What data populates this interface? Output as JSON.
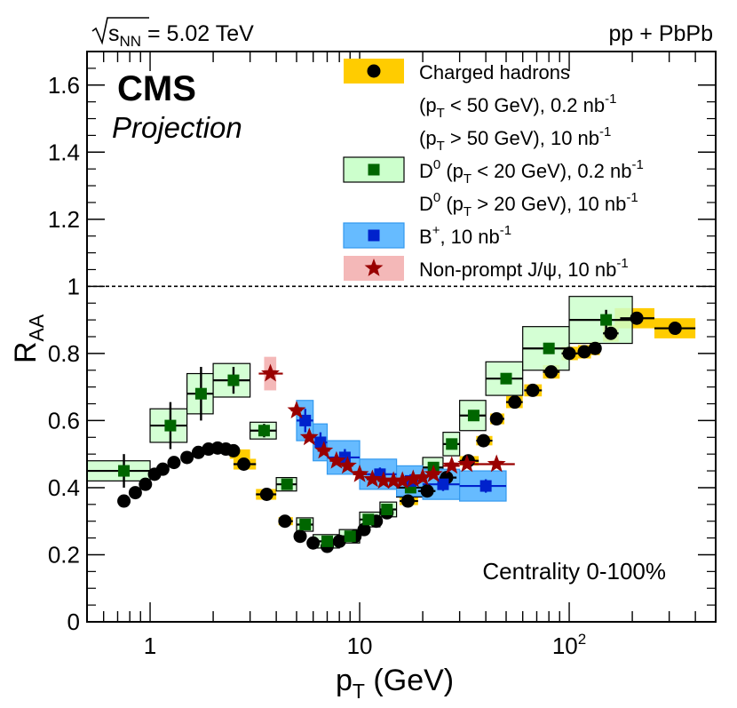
{
  "header": {
    "energy_prefix": "s",
    "energy_sub": "NN",
    "energy_value": " = 5.02 TeV",
    "collision": "pp + PbPb"
  },
  "badge": {
    "experiment": "CMS",
    "status": "Projection"
  },
  "centrality": "Centrality 0-100%",
  "chart_data": {
    "type": "scatter",
    "xscale": "log",
    "xlim": [
      0.5,
      500
    ],
    "ylim": [
      0,
      1.7
    ],
    "xlabel": {
      "main": "p",
      "sub": "T",
      "unit": " (GeV)"
    },
    "ylabel": {
      "main": "R",
      "sub": "AA"
    },
    "reference_line": 1.0,
    "x_ticks": [
      {
        "value": 1,
        "base": "1",
        "exp": ""
      },
      {
        "value": 10,
        "base": "10",
        "exp": ""
      },
      {
        "value": 100,
        "base": "10",
        "exp": "2"
      }
    ],
    "y_ticks": [
      {
        "value": 0,
        "label": "0"
      },
      {
        "value": 0.2,
        "label": "0.2"
      },
      {
        "value": 0.4,
        "label": "0.4"
      },
      {
        "value": 0.6,
        "label": "0.6"
      },
      {
        "value": 0.8,
        "label": "0.8"
      },
      {
        "value": 1.0,
        "label": "1"
      },
      {
        "value": 1.2,
        "label": "1.2"
      },
      {
        "value": 1.4,
        "label": "1.4"
      },
      {
        "value": 1.6,
        "label": "1.6"
      }
    ],
    "legend": [
      {
        "id": "charged",
        "lines": [
          [
            {
              "t": "Charged hadrons"
            }
          ],
          [
            {
              "t": "(p"
            },
            {
              "t": "T",
              "sub": true
            },
            {
              "t": " < 50 GeV), 0.2 nb"
            },
            {
              "t": "-1",
              "sup": true
            }
          ],
          [
            {
              "t": "(p"
            },
            {
              "t": "T",
              "sub": true
            },
            {
              "t": " > 50 GeV), 10 nb"
            },
            {
              "t": "-1",
              "sup": true
            }
          ]
        ]
      },
      {
        "id": "d0",
        "lines": [
          [
            {
              "t": "D"
            },
            {
              "t": "0",
              "sup": true
            },
            {
              "t": " (p"
            },
            {
              "t": "T",
              "sub": true
            },
            {
              "t": " < 20 GeV), 0.2 nb"
            },
            {
              "t": "-1",
              "sup": true
            }
          ],
          [
            {
              "t": "D"
            },
            {
              "t": "0",
              "sup": true
            },
            {
              "t": " (p"
            },
            {
              "t": "T",
              "sub": true
            },
            {
              "t": " > 20 GeV), 10 nb"
            },
            {
              "t": "-1",
              "sup": true
            }
          ]
        ]
      },
      {
        "id": "bplus",
        "lines": [
          [
            {
              "t": "B"
            },
            {
              "t": "+",
              "sup": true
            },
            {
              "t": ", 10 nb"
            },
            {
              "t": "-1",
              "sup": true
            }
          ]
        ]
      },
      {
        "id": "jpsi",
        "lines": [
          [
            {
              "t": "Non-prompt J/ψ, 10 nb"
            },
            {
              "t": "-1",
              "sup": true
            }
          ]
        ]
      }
    ],
    "series": [
      {
        "id": "charged",
        "name": "Charged hadrons",
        "marker": "circle",
        "color": "#000000",
        "box_fill": "#ffcc00",
        "box_stroke": "none",
        "points": [
          {
            "x": 0.75,
            "y": 0.36
          },
          {
            "x": 0.85,
            "y": 0.385
          },
          {
            "x": 0.95,
            "y": 0.41
          },
          {
            "x": 1.05,
            "y": 0.44
          },
          {
            "x": 1.15,
            "y": 0.455
          },
          {
            "x": 1.3,
            "y": 0.475
          },
          {
            "x": 1.5,
            "y": 0.49
          },
          {
            "x": 1.7,
            "y": 0.505
          },
          {
            "x": 1.9,
            "y": 0.515
          },
          {
            "x": 2.1,
            "y": 0.518
          },
          {
            "x": 2.3,
            "y": 0.515
          },
          {
            "x": 2.5,
            "y": 0.51
          },
          {
            "x": 2.7,
            "y": 0.5,
            "xlo": 2.4,
            "xhi": 3.0,
            "box_dy": 0.014,
            "box_only": true
          },
          {
            "x": 2.8,
            "y": 0.47,
            "xlo": 2.5,
            "xhi": 3.2,
            "box_dy": 0.016
          },
          {
            "x": 3.6,
            "y": 0.38,
            "xlo": 3.2,
            "xhi": 4.0,
            "box_dy": 0.016
          },
          {
            "x": 4.4,
            "y": 0.3,
            "xlo": 4.1,
            "xhi": 4.8,
            "box_dy": 0.012
          },
          {
            "x": 5.2,
            "y": 0.255
          },
          {
            "x": 6.0,
            "y": 0.235
          },
          {
            "x": 7.0,
            "y": 0.225
          },
          {
            "x": 8.0,
            "y": 0.24
          },
          {
            "x": 9.5,
            "y": 0.255
          },
          {
            "x": 10.5,
            "y": 0.275
          },
          {
            "x": 12.0,
            "y": 0.3
          },
          {
            "x": 13.5,
            "y": 0.325
          },
          {
            "x": 17.0,
            "y": 0.36,
            "xlo": 15.5,
            "xhi": 19.0,
            "box_dy": 0.012
          },
          {
            "x": 21.0,
            "y": 0.39,
            "xlo": 19.0,
            "xhi": 23.0,
            "box_dy": 0.012
          },
          {
            "x": 26.0,
            "y": 0.43,
            "xlo": 24.0,
            "xhi": 29.0,
            "box_dy": 0.012
          },
          {
            "x": 33.0,
            "y": 0.48,
            "xlo": 30.0,
            "xhi": 37.0,
            "box_dy": 0.014
          },
          {
            "x": 39.0,
            "y": 0.54,
            "xlo": 36.0,
            "xhi": 43.0,
            "box_dy": 0.014
          },
          {
            "x": 45.0,
            "y": 0.605,
            "xlo": 42.0,
            "xhi": 49.0,
            "box_dy": 0.016
          },
          {
            "x": 55.0,
            "y": 0.655,
            "xlo": 50.0,
            "xhi": 60.0,
            "box_dy": 0.018
          },
          {
            "x": 67.0,
            "y": 0.69,
            "xlo": 61.0,
            "xhi": 74.0,
            "box_dy": 0.018
          },
          {
            "x": 82.0,
            "y": 0.745,
            "xlo": 75.0,
            "xhi": 90.0,
            "box_dy": 0.02
          },
          {
            "x": 100.0,
            "y": 0.8,
            "xlo": 92.0,
            "xhi": 110.0,
            "box_dy": 0.02
          },
          {
            "x": 118.0,
            "y": 0.805,
            "xlo": 110.0,
            "xhi": 127.0,
            "box_dy": 0.02
          },
          {
            "x": 133.0,
            "y": 0.815,
            "xlo": 126.0,
            "xhi": 140.0,
            "box_dy": 0.02
          },
          {
            "x": 158.0,
            "y": 0.86,
            "xlo": 145.0,
            "xhi": 172.0,
            "box_dy": 0.025
          },
          {
            "x": 180.0,
            "y": 0.905,
            "xlo": 165.0,
            "xhi": 200.0,
            "box_dy": 0.03,
            "box_only": true
          },
          {
            "x": 210.0,
            "y": 0.905,
            "xlo": 175.0,
            "xhi": 255.0,
            "box_dy": 0.03
          },
          {
            "x": 320.0,
            "y": 0.875,
            "xlo": 255.0,
            "xhi": 400.0,
            "box_dy": 0.03
          }
        ]
      },
      {
        "id": "d0",
        "name": "D0",
        "marker": "square",
        "color": "#006600",
        "box_fill": "#ccffcc",
        "box_stroke": "#000000",
        "points": [
          {
            "x": 0.75,
            "y": 0.45,
            "xlo": 0.5,
            "xhi": 1.0,
            "box_dy": 0.03,
            "ey": 0.05
          },
          {
            "x": 1.25,
            "y": 0.585,
            "xlo": 1.0,
            "xhi": 1.5,
            "box_dy": 0.05,
            "ey": 0.07
          },
          {
            "x": 1.75,
            "y": 0.68,
            "xlo": 1.5,
            "xhi": 2.0,
            "box_dy": 0.06,
            "ey": 0.08
          },
          {
            "x": 2.5,
            "y": 0.72,
            "xlo": 2.0,
            "xhi": 3.0,
            "box_dy": 0.05,
            "ey": 0.04
          },
          {
            "x": 3.5,
            "y": 0.57,
            "xlo": 3.0,
            "xhi": 4.0,
            "box_dy": 0.025,
            "ey": 0.02
          },
          {
            "x": 4.5,
            "y": 0.41,
            "xlo": 4.0,
            "xhi": 5.0,
            "box_dy": 0.02
          },
          {
            "x": 5.5,
            "y": 0.29,
            "xlo": 5.0,
            "xhi": 6.0,
            "box_dy": 0.02
          },
          {
            "x": 7.0,
            "y": 0.24,
            "xlo": 6.0,
            "xhi": 8.0,
            "box_dy": 0.02
          },
          {
            "x": 9.0,
            "y": 0.255,
            "xlo": 8.0,
            "xhi": 10.0,
            "box_dy": 0.02
          },
          {
            "x": 11.0,
            "y": 0.305,
            "xlo": 10.0,
            "xhi": 12.5,
            "box_dy": 0.022
          },
          {
            "x": 13.5,
            "y": 0.335,
            "xlo": 12.5,
            "xhi": 15.0,
            "box_dy": 0.022
          },
          {
            "x": 17.5,
            "y": 0.4,
            "xlo": 15.0,
            "xhi": 20.0,
            "box_dy": 0.028
          },
          {
            "x": 22.5,
            "y": 0.46,
            "xlo": 20.0,
            "xhi": 25.0,
            "box_dy": 0.03
          },
          {
            "x": 27.5,
            "y": 0.53,
            "xlo": 25.0,
            "xhi": 30.0,
            "box_dy": 0.035
          },
          {
            "x": 35.0,
            "y": 0.615,
            "xlo": 30.0,
            "xhi": 40.0,
            "box_dy": 0.045
          },
          {
            "x": 50.0,
            "y": 0.725,
            "xlo": 40.0,
            "xhi": 60.0,
            "box_dy": 0.05
          },
          {
            "x": 80.0,
            "y": 0.815,
            "xlo": 60.0,
            "xhi": 100.0,
            "box_dy": 0.065
          },
          {
            "x": 150.0,
            "y": 0.9,
            "xlo": 100.0,
            "xhi": 200.0,
            "box_dy": 0.07,
            "ey": 0.03
          }
        ]
      },
      {
        "id": "bplus",
        "name": "B+",
        "marker": "square",
        "color": "#0022cc",
        "box_fill": "#66bbff",
        "box_stroke": "#3399ee",
        "points": [
          {
            "x": 5.5,
            "y": 0.6,
            "xlo": 5.0,
            "xhi": 6.0,
            "box_dy": 0.06,
            "ey": 0.035
          },
          {
            "x": 6.5,
            "y": 0.535,
            "xlo": 6.0,
            "xhi": 7.0,
            "box_dy": 0.055,
            "ey": 0.03
          },
          {
            "x": 8.5,
            "y": 0.49,
            "xlo": 7.0,
            "xhi": 10.0,
            "box_dy": 0.05,
            "ey": 0.025
          },
          {
            "x": 12.5,
            "y": 0.44,
            "xlo": 10.0,
            "xhi": 15.0,
            "box_dy": 0.045,
            "ey": 0.02
          },
          {
            "x": 17.5,
            "y": 0.42,
            "xlo": 15.0,
            "xhi": 20.0,
            "box_dy": 0.045,
            "ey": 0.02
          },
          {
            "x": 25.0,
            "y": 0.41,
            "xlo": 20.0,
            "xhi": 30.0,
            "box_dy": 0.045,
            "ey": 0.02
          },
          {
            "x": 40.0,
            "y": 0.405,
            "xlo": 30.0,
            "xhi": 50.0,
            "box_dy": 0.045,
            "ey": 0.02
          }
        ]
      },
      {
        "id": "jpsi",
        "name": "Non-prompt J/psi",
        "marker": "star",
        "color": "#990000",
        "box_fill": "#f4b8b8",
        "box_stroke": "none",
        "points": [
          {
            "x": 3.75,
            "y": 0.74,
            "xlo": 3.5,
            "xhi": 4.0,
            "box_dy": 0.05,
            "exlo": 3.3,
            "exhi": 4.3
          },
          {
            "x": 5.0,
            "y": 0.63,
            "exlo": 4.7,
            "exhi": 5.3
          },
          {
            "x": 5.75,
            "y": 0.55,
            "exlo": 5.4,
            "exhi": 6.1
          },
          {
            "x": 6.75,
            "y": 0.51,
            "exlo": 6.3,
            "exhi": 7.2
          },
          {
            "x": 7.75,
            "y": 0.48,
            "exlo": 7.2,
            "exhi": 8.3
          },
          {
            "x": 8.75,
            "y": 0.465,
            "exlo": 8.2,
            "exhi": 9.3
          },
          {
            "x": 10.0,
            "y": 0.44,
            "exlo": 9.3,
            "exhi": 10.8
          },
          {
            "x": 11.5,
            "y": 0.425,
            "exlo": 10.8,
            "exhi": 12.3
          },
          {
            "x": 13.0,
            "y": 0.42,
            "exlo": 12.2,
            "exhi": 13.8
          },
          {
            "x": 14.5,
            "y": 0.42,
            "exlo": 13.7,
            "exhi": 15.4
          },
          {
            "x": 16.0,
            "y": 0.42,
            "exlo": 15.2,
            "exhi": 16.8
          },
          {
            "x": 18.0,
            "y": 0.425,
            "exlo": 17.0,
            "exhi": 19.0
          },
          {
            "x": 20.0,
            "y": 0.43,
            "exlo": 19.0,
            "exhi": 21.0
          },
          {
            "x": 22.5,
            "y": 0.44,
            "exlo": 21.0,
            "exhi": 24.0
          },
          {
            "x": 27.5,
            "y": 0.465,
            "exlo": 25.0,
            "exhi": 30.0
          },
          {
            "x": 32.5,
            "y": 0.47,
            "exlo": 30.0,
            "exhi": 35.0
          },
          {
            "x": 45.0,
            "y": 0.47,
            "exlo": 35.0,
            "exhi": 55.0
          }
        ]
      }
    ]
  }
}
